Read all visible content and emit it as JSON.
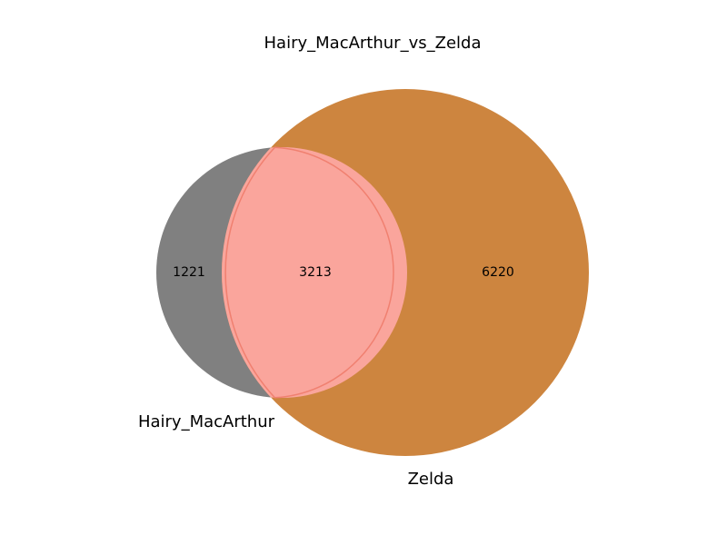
{
  "chart_data": {
    "type": "venn",
    "title": "Hairy_MacArthur_vs_Zelda",
    "sets": [
      {
        "name": "Hairy_MacArthur",
        "only": 1221,
        "color": "#808080"
      },
      {
        "name": "Zelda",
        "only": 6220,
        "color": "#cd853f"
      }
    ],
    "intersection": {
      "value": 3213,
      "color": "#faa59c"
    },
    "intersection_edge_color": "#f08070"
  }
}
